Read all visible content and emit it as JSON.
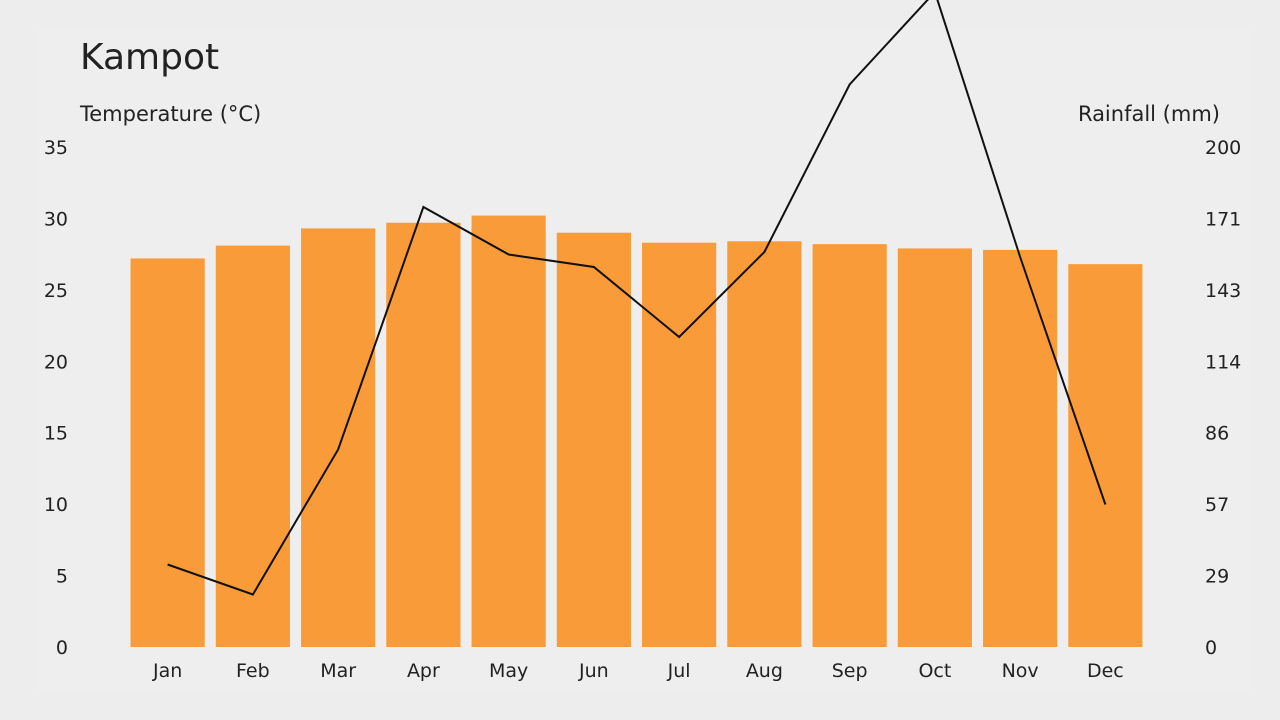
{
  "chart_data": {
    "type": "bar",
    "title": "Kampot",
    "ylabel_left": "Temperature (°C)",
    "ylabel_right": "Rainfall (mm)",
    "categories": [
      "Jan",
      "Feb",
      "Mar",
      "Apr",
      "May",
      "Jun",
      "Jul",
      "Aug",
      "Sep",
      "Oct",
      "Nov",
      "Dec"
    ],
    "series": [
      {
        "type": "bar",
        "axis": "left",
        "values": [
          27.2,
          28.1,
          29.3,
          29.7,
          30.2,
          29.0,
          28.3,
          28.4,
          28.2,
          27.9,
          27.8,
          26.8
        ],
        "color": "#f99b38"
      },
      {
        "type": "line",
        "axis": "right",
        "values": [
          33,
          21,
          79,
          176,
          157,
          152,
          124,
          158,
          225,
          262,
          156,
          57
        ],
        "color": "#111111"
      }
    ],
    "y_left": {
      "lim": [
        0,
        35
      ],
      "ticks": [
        "0",
        "5",
        "10",
        "15",
        "20",
        "25",
        "30",
        "35"
      ]
    },
    "y_right": {
      "lim": [
        0,
        200
      ],
      "ticks": [
        "0",
        "29",
        "57",
        "86",
        "114",
        "143",
        "171",
        "200"
      ]
    },
    "grid": false,
    "legend": "none"
  }
}
